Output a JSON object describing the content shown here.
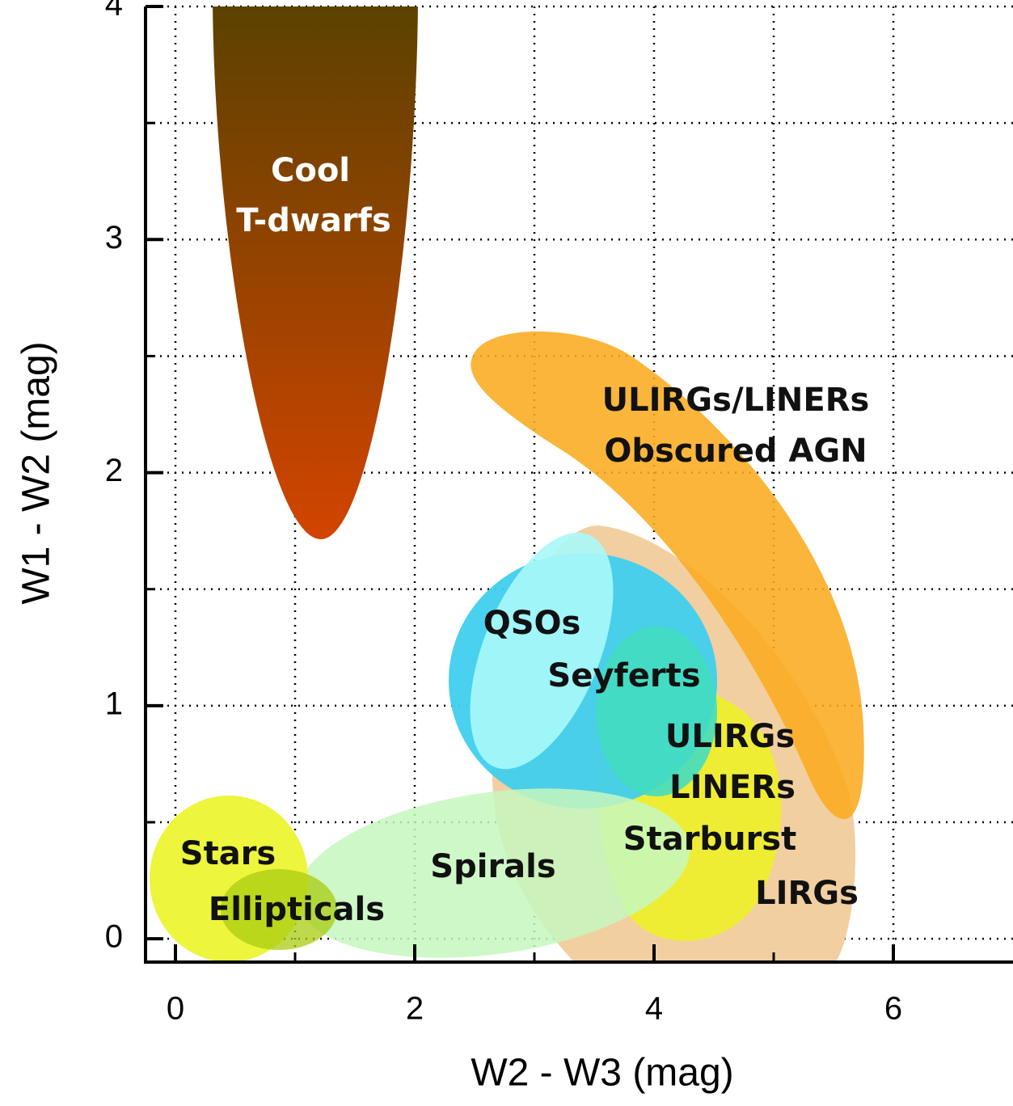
{
  "chart_data": {
    "type": "region",
    "xlabel": "W2 - W3 (mag)",
    "ylabel": "W1 - W2 (mag)",
    "xlim": [
      -0.25,
      7.0
    ],
    "ylim": [
      -0.1,
      4.0
    ],
    "xticks": [
      0,
      2,
      4,
      6
    ],
    "xminor": [
      1,
      3,
      5
    ],
    "yticks": [
      0,
      1,
      2,
      3,
      4
    ],
    "yminor": [
      0.5,
      1.5,
      2.5,
      3.5
    ],
    "grid": true,
    "annotations": [
      "Cool",
      "T-dwarfs",
      "ULIRGs/LINERs",
      "Obscured AGN",
      "QSOs",
      "Seyferts",
      "ULIRGs",
      "LINERs",
      "Starburst",
      "LIRGs",
      "Stars",
      "Ellipticals",
      "Spirals"
    ]
  }
}
